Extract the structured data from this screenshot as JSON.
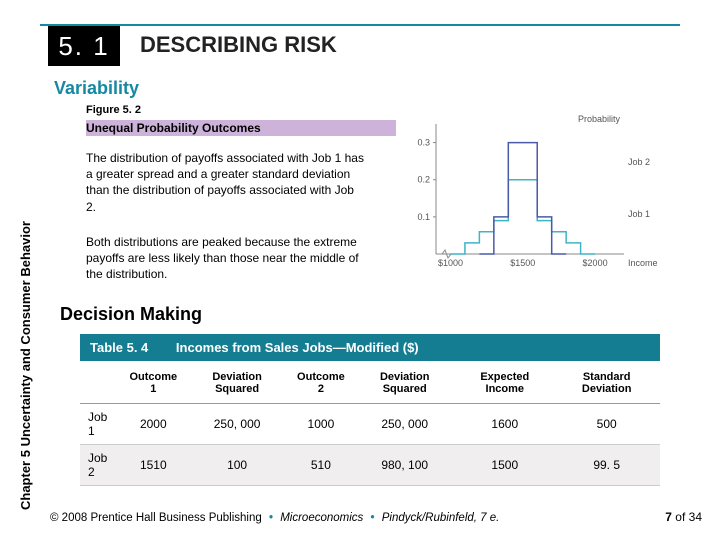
{
  "section_number": "5. 1",
  "title": "DESCRIBING RISK",
  "subheading": "Variability",
  "figure_label": "Figure 5. 2",
  "figure_caption": "Unequal Probability Outcomes",
  "paragraph1": "The distribution of payoffs associated with Job 1 has a greater spread and a greater standard deviation than the distribution of payoffs associated with Job 2.",
  "paragraph2": "Both distributions are peaked because the extreme payoffs are less likely than those near the middle of the distribution.",
  "decision_heading": "Decision Making",
  "sidebar": "Chapter 5  Uncertainty and Consumer Behavior",
  "table": {
    "number": "Table 5. 4",
    "title": "Incomes from Sales Jobs—Modified ($)",
    "columns": [
      "",
      "Outcome 1",
      "Deviation Squared",
      "Outcome 2",
      "Deviation Squared",
      "Expected Income",
      "Standard Deviation"
    ],
    "rows": [
      [
        "Job 1",
        "2000",
        "250, 000",
        "1000",
        "250, 000",
        "1600",
        "500"
      ],
      [
        "Job 2",
        "1510",
        "100",
        "510",
        "980, 100",
        "1500",
        "99. 5"
      ]
    ]
  },
  "copyright_prefix": "© 2008 Prentice Hall Business Publishing",
  "copyright_mid": "Microeconomics",
  "copyright_suffix": "Pindyck/Rubinfeld, 7 e.",
  "page_current": "7",
  "page_total": "34",
  "chart": {
    "ylabel": "Probability",
    "xlabel": "Income",
    "ytick_labels": [
      "0.1",
      "0.2",
      "0.3"
    ],
    "ytick_positions": [
      0.1,
      0.2,
      0.3
    ],
    "xtick_labels": [
      "$1000",
      "$1500",
      "$2000"
    ],
    "series": [
      {
        "name": "Job 2",
        "color": "#4a5aa8",
        "label_y": 0.24
      },
      {
        "name": "Job 1",
        "color": "#3fb4c5",
        "label_y": 0.1
      }
    ],
    "job2_step": {
      "x": [
        1200,
        1300,
        1300,
        1400,
        1400,
        1600,
        1600,
        1700,
        1700,
        1800
      ],
      "y": [
        0,
        0,
        0.1,
        0.1,
        0.3,
        0.3,
        0.1,
        0.1,
        0,
        0
      ]
    },
    "job1_step": {
      "x": [
        1000,
        1100,
        1100,
        1200,
        1200,
        1300,
        1300,
        1400,
        1400,
        1600,
        1600,
        1700,
        1700,
        1800,
        1800,
        1900,
        1900,
        2000
      ],
      "y": [
        0,
        0,
        0.03,
        0.03,
        0.06,
        0.06,
        0.09,
        0.09,
        0.2,
        0.2,
        0.09,
        0.09,
        0.06,
        0.06,
        0.03,
        0.03,
        0,
        0
      ]
    },
    "xlim": [
      900,
      2200
    ],
    "ylim": [
      0,
      0.35
    ],
    "axis_color": "#888",
    "background": "#ffffff"
  }
}
